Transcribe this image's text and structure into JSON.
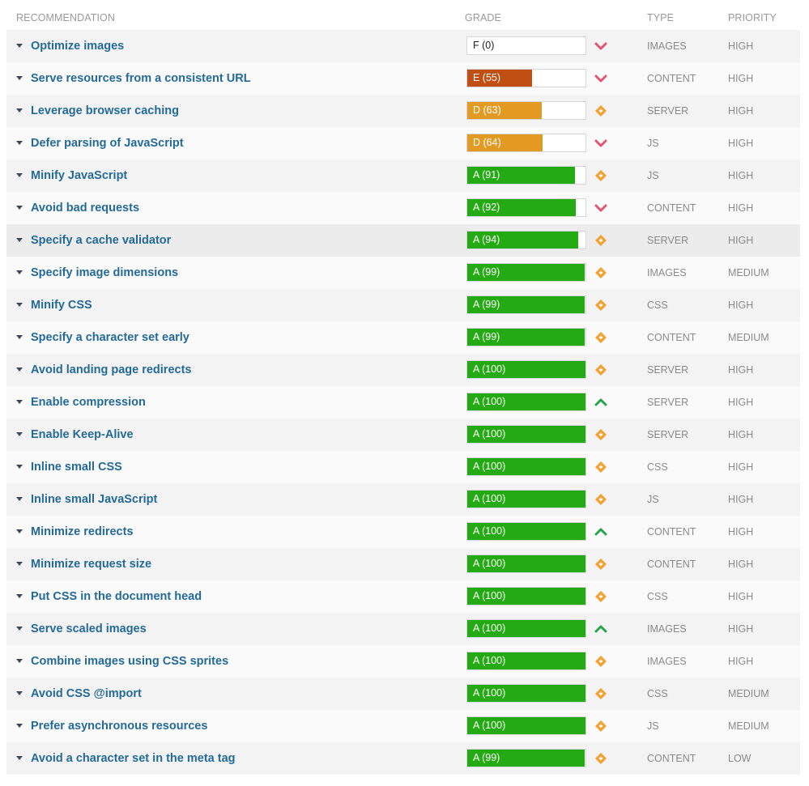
{
  "header": {
    "recommendation": "RECOMMENDATION",
    "grade": "GRADE",
    "type": "TYPE",
    "priority": "PRIORITY"
  },
  "colors": {
    "grade_a": "#24aa13",
    "grade_d": "#e39a22",
    "grade_e": "#c24f12",
    "trend_down": "#e05670",
    "trend_up": "#2ba24c",
    "trend_neutral": "#f4a12e"
  },
  "rows": [
    {
      "label": "Optimize images",
      "grade": "F (0)",
      "score": 0,
      "trend": "down",
      "trend_icon": "chevron-down-icon",
      "type": "IMAGES",
      "priority": "HIGH"
    },
    {
      "label": "Serve resources from a consistent URL",
      "grade": "E (55)",
      "score": 55,
      "trend": "down",
      "trend_icon": "chevron-down-icon",
      "type": "CONTENT",
      "priority": "HIGH"
    },
    {
      "label": "Leverage browser caching",
      "grade": "D (63)",
      "score": 63,
      "trend": "neutral",
      "trend_icon": "diamond-icon",
      "type": "SERVER",
      "priority": "HIGH"
    },
    {
      "label": "Defer parsing of JavaScript",
      "grade": "D (64)",
      "score": 64,
      "trend": "down",
      "trend_icon": "chevron-down-icon",
      "type": "JS",
      "priority": "HIGH"
    },
    {
      "label": "Minify JavaScript",
      "grade": "A (91)",
      "score": 91,
      "trend": "neutral",
      "trend_icon": "diamond-icon",
      "type": "JS",
      "priority": "HIGH"
    },
    {
      "label": "Avoid bad requests",
      "grade": "A (92)",
      "score": 92,
      "trend": "down",
      "trend_icon": "chevron-down-icon",
      "type": "CONTENT",
      "priority": "HIGH"
    },
    {
      "label": "Specify a cache validator",
      "grade": "A (94)",
      "score": 94,
      "trend": "neutral",
      "trend_icon": "diamond-icon",
      "type": "SERVER",
      "priority": "HIGH"
    },
    {
      "label": "Specify image dimensions",
      "grade": "A (99)",
      "score": 99,
      "trend": "neutral",
      "trend_icon": "diamond-icon",
      "type": "IMAGES",
      "priority": "MEDIUM"
    },
    {
      "label": "Minify CSS",
      "grade": "A (99)",
      "score": 99,
      "trend": "neutral",
      "trend_icon": "diamond-icon",
      "type": "CSS",
      "priority": "HIGH"
    },
    {
      "label": "Specify a character set early",
      "grade": "A (99)",
      "score": 99,
      "trend": "neutral",
      "trend_icon": "diamond-icon",
      "type": "CONTENT",
      "priority": "MEDIUM"
    },
    {
      "label": "Avoid landing page redirects",
      "grade": "A (100)",
      "score": 100,
      "trend": "neutral",
      "trend_icon": "diamond-icon",
      "type": "SERVER",
      "priority": "HIGH"
    },
    {
      "label": "Enable compression",
      "grade": "A (100)",
      "score": 100,
      "trend": "up",
      "trend_icon": "chevron-up-icon",
      "type": "SERVER",
      "priority": "HIGH"
    },
    {
      "label": "Enable Keep-Alive",
      "grade": "A (100)",
      "score": 100,
      "trend": "neutral",
      "trend_icon": "diamond-icon",
      "type": "SERVER",
      "priority": "HIGH"
    },
    {
      "label": "Inline small CSS",
      "grade": "A (100)",
      "score": 100,
      "trend": "neutral",
      "trend_icon": "diamond-icon",
      "type": "CSS",
      "priority": "HIGH"
    },
    {
      "label": "Inline small JavaScript",
      "grade": "A (100)",
      "score": 100,
      "trend": "neutral",
      "trend_icon": "diamond-icon",
      "type": "JS",
      "priority": "HIGH"
    },
    {
      "label": "Minimize redirects",
      "grade": "A (100)",
      "score": 100,
      "trend": "up",
      "trend_icon": "chevron-up-icon",
      "type": "CONTENT",
      "priority": "HIGH"
    },
    {
      "label": "Minimize request size",
      "grade": "A (100)",
      "score": 100,
      "trend": "neutral",
      "trend_icon": "diamond-icon",
      "type": "CONTENT",
      "priority": "HIGH"
    },
    {
      "label": "Put CSS in the document head",
      "grade": "A (100)",
      "score": 100,
      "trend": "neutral",
      "trend_icon": "diamond-icon",
      "type": "CSS",
      "priority": "HIGH"
    },
    {
      "label": "Serve scaled images",
      "grade": "A (100)",
      "score": 100,
      "trend": "up",
      "trend_icon": "chevron-up-icon",
      "type": "IMAGES",
      "priority": "HIGH"
    },
    {
      "label": "Combine images using CSS sprites",
      "grade": "A (100)",
      "score": 100,
      "trend": "neutral",
      "trend_icon": "diamond-icon",
      "type": "IMAGES",
      "priority": "HIGH"
    },
    {
      "label": "Avoid CSS @import",
      "grade": "A (100)",
      "score": 100,
      "trend": "neutral",
      "trend_icon": "diamond-icon",
      "type": "CSS",
      "priority": "MEDIUM"
    },
    {
      "label": "Prefer asynchronous resources",
      "grade": "A (100)",
      "score": 100,
      "trend": "neutral",
      "trend_icon": "diamond-icon",
      "type": "JS",
      "priority": "MEDIUM"
    },
    {
      "label": "Avoid a character set in the meta tag",
      "grade": "A (99)",
      "score": 99,
      "trend": "neutral",
      "trend_icon": "diamond-icon",
      "type": "CONTENT",
      "priority": "LOW"
    }
  ]
}
